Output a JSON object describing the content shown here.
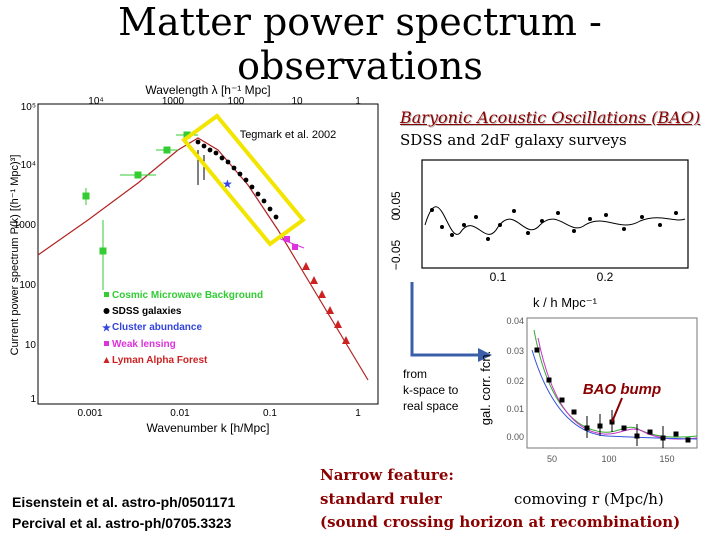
{
  "slide": {
    "title_line1": "Matter power spectrum -",
    "title_line2": "observations"
  },
  "left_plot": {
    "top_axis_label": "Wavelength λ [h⁻¹ Mpc]",
    "top_ticks": [
      "10⁴",
      "1000",
      "100",
      "10",
      "1"
    ],
    "y_label": "Current power spectrum P(k) [(h⁻¹ Mpc)³]",
    "y_ticks": [
      "10⁵",
      "10⁴",
      "1000",
      "100",
      "10",
      "1"
    ],
    "x_label": "Wavenumber k [h/Mpc]",
    "x_ticks": [
      "0.001",
      "0.01",
      "0.1",
      "1"
    ],
    "credit": "Tegmark et al. 2002",
    "legend": [
      {
        "label": "Cosmic Microwave Background",
        "color": "#33cc33",
        "marker": "square"
      },
      {
        "label": "SDSS galaxies",
        "color": "#000000",
        "marker": "circle"
      },
      {
        "label": "Cluster abundance",
        "color": "#3344dd",
        "marker": "star"
      },
      {
        "label": "Weak lensing",
        "color": "#dd33dd",
        "marker": "square"
      },
      {
        "label": "Lyman Alpha Forest",
        "color": "#cc2222",
        "marker": "triangle"
      }
    ]
  },
  "bao_header": {
    "title": "Baryonic Acoustic Oscillations (BAO)",
    "subtitle": "SDSS and 2dF galaxy surveys"
  },
  "bao_plot": {
    "y_ticks": [
      "0.05",
      "0",
      "−0.05"
    ],
    "x_ticks": [
      "0.1",
      "0.2"
    ],
    "x_label": "k / h Mpc⁻¹"
  },
  "arrow_note": {
    "line1": "from",
    "line2": "k-space to",
    "line3": "real space"
  },
  "corr_plot": {
    "y_label": "gal. corr. fcn.",
    "y_ticks": [
      "0.04",
      "0.03",
      "0.02",
      "0.01",
      "0.00"
    ],
    "x_ticks": [
      "50",
      "100",
      "150"
    ],
    "bump_label": "BAO bump"
  },
  "bottom": {
    "narrow_line1": "Narrow feature:",
    "narrow_line2": "standard ruler",
    "narrow_line3": "(sound crossing horizon at recombination)",
    "comoving": "comoving r (Mpc/h)"
  },
  "references": {
    "ref1": "Eisenstein et al. astro-ph/0501171",
    "ref2": "Percival et al. astro-ph/0705.3323"
  },
  "colors": {
    "model_curve": "#b22222",
    "highlight_box": "#f2e600",
    "arrow": "#3a5fa8",
    "bump": "#8b0000"
  }
}
